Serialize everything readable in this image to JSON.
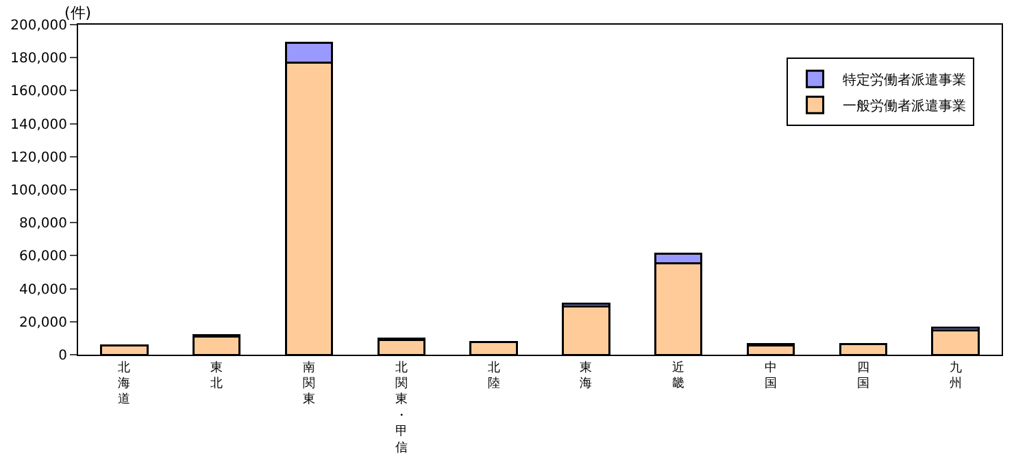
{
  "chart_data": {
    "type": "bar",
    "stacked": true,
    "ylabel": "(件)",
    "categories": [
      "北海道",
      "東北",
      "南関東",
      "北関東・甲信",
      "北陸",
      "東海",
      "近畿",
      "中国",
      "四国",
      "九州"
    ],
    "series": [
      {
        "name": "一般労働者派遣事業",
        "color": "#ffcc99",
        "values": [
          5400,
          11100,
          176800,
          9000,
          7500,
          29300,
          55400,
          5600,
          6400,
          14700
        ]
      },
      {
        "name": "特定労働者派遣事業",
        "color": "#9999ff",
        "values": [
          null,
          700,
          12100,
          600,
          null,
          1500,
          5700,
          1000,
          null,
          1600
        ]
      }
    ],
    "ylim": [
      0,
      200000
    ],
    "yticks": [
      0,
      {
        "value": 20000,
        "label": "20,000"
      },
      {
        "value": 40000,
        "label": "40,000"
      },
      {
        "value": 60000,
        "label": "60,000"
      },
      {
        "value": 80000,
        "label": "80,000"
      },
      {
        "value": 100000,
        "label": "100,000"
      },
      {
        "value": 120000,
        "label": "120,000"
      },
      {
        "value": 140000,
        "label": "140,000"
      },
      {
        "value": 160000,
        "label": "160,000"
      },
      {
        "value": 180000,
        "label": "180,000"
      },
      {
        "value": 200000,
        "label": "200,000"
      }
    ],
    "legend": "top right",
    "grid": false
  }
}
